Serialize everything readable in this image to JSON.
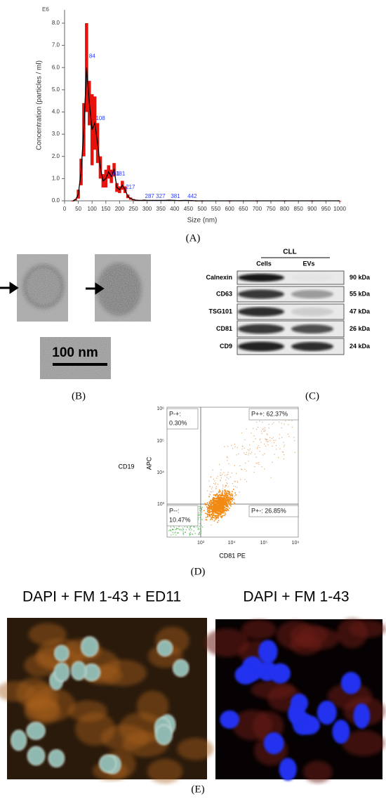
{
  "chart_data": {
    "type": "line",
    "scale_label": "E6",
    "xlabel": "Size (nm)",
    "ylabel": "Concentration (particles / ml)",
    "x": [
      30,
      40,
      50,
      60,
      70,
      80,
      90,
      100,
      110,
      120,
      130,
      140,
      150,
      160,
      170,
      180,
      190,
      200,
      210,
      220,
      230,
      240,
      250,
      260,
      270,
      280,
      290,
      300,
      320,
      340,
      360,
      380,
      400,
      420,
      440,
      460,
      480,
      500,
      600,
      700,
      800,
      900,
      1000
    ],
    "values": [
      0,
      0.05,
      0.3,
      1.3,
      3.2,
      6.0,
      4.4,
      3.2,
      3.5,
      2.6,
      1.5,
      0.9,
      1.0,
      1.3,
      1.1,
      1.4,
      0.6,
      0.5,
      0.7,
      0.5,
      0.2,
      0.1,
      0.05,
      0.03,
      0.02,
      0.02,
      0.03,
      0.02,
      0.02,
      0.02,
      0.02,
      0.03,
      0.02,
      0.01,
      0.02,
      0.01,
      0,
      0,
      0,
      0,
      0,
      0,
      0
    ],
    "error": [
      0,
      0.03,
      0.2,
      0.6,
      1.2,
      2.0,
      1.0,
      1.6,
      1.2,
      0.9,
      0.5,
      0.3,
      0.4,
      0.3,
      0.3,
      0.3,
      0.2,
      0.15,
      0.2,
      0.15,
      0.08,
      0.05,
      0.03,
      0.02,
      0.01,
      0.01,
      0.02,
      0.01,
      0.01,
      0.01,
      0.01,
      0.02,
      0.01,
      0.01,
      0.01,
      0.01,
      0,
      0,
      0,
      0,
      0,
      0,
      0
    ],
    "color": "#000000",
    "error_color": "#e8120c",
    "xlim": [
      0,
      1000
    ],
    "ylim": [
      0,
      8.6
    ],
    "xticks": [
      0,
      50,
      100,
      150,
      200,
      250,
      300,
      350,
      400,
      450,
      500,
      550,
      600,
      650,
      700,
      750,
      800,
      850,
      900,
      950,
      1000
    ],
    "yticks": [
      {
        "value": 0,
        "label": "0.0"
      },
      {
        "value": 1,
        "label": "1.0"
      },
      {
        "value": 2,
        "label": "2.0"
      },
      {
        "value": 3,
        "label": "3.0"
      },
      {
        "value": 4,
        "label": "4.0"
      },
      {
        "value": 5,
        "label": "5.0"
      },
      {
        "value": 6,
        "label": "6.0"
      },
      {
        "value": 7,
        "label": "7.0"
      },
      {
        "value": 8,
        "label": "8.0"
      }
    ],
    "annotations": [
      {
        "text": "84",
        "x": 84,
        "y": 6.5
      },
      {
        "text": "108",
        "x": 108,
        "y": 3.7
      },
      {
        "text": "161",
        "x": 161,
        "y": 1.2
      },
      {
        "text": "181",
        "x": 181,
        "y": 1.2
      },
      {
        "text": "217",
        "x": 217,
        "y": 0.6
      },
      {
        "text": "287",
        "x": 287,
        "y": 0.2
      },
      {
        "text": "327",
        "x": 327,
        "y": 0.2
      },
      {
        "text": "381",
        "x": 381,
        "y": 0.2
      },
      {
        "text": "442",
        "x": 442,
        "y": 0.2
      }
    ],
    "annotation_color": "#2b3bff",
    "panel_label": "(A)"
  },
  "panels": {
    "B": {
      "label": "(B)",
      "scale_bar": "100 nm"
    },
    "C": {
      "label": "(C)",
      "group": "CLL",
      "lanes": [
        "Cells",
        "EVs"
      ],
      "rows": [
        {
          "protein": "Calnexin",
          "size": "90 kDa"
        },
        {
          "protein": "CD63",
          "size": "55 kDa"
        },
        {
          "protein": "TSG101",
          "size": "47 kDa"
        },
        {
          "protein": "CD81",
          "size": "26 kDa"
        },
        {
          "protein": "CD9",
          "size": "24 kDa"
        }
      ]
    },
    "D": {
      "label": "(D)",
      "marker": "CD19",
      "ylabel": "APC",
      "xlabel": "CD81 PE",
      "xticks": [
        "10³",
        "10⁴",
        "10⁵",
        "10⁶"
      ],
      "yticks": [
        "10³",
        "10⁴",
        "10⁵",
        "10⁶"
      ],
      "quadrants": {
        "upper_left": [
          "P-+:",
          "0.30%"
        ],
        "upper_right": [
          "P++: 62.37%"
        ],
        "lower_left": [
          "P--:",
          "10.47%"
        ],
        "lower_right": [
          "P+-: 26.85%"
        ]
      }
    },
    "E": {
      "label": "(E)",
      "titles": [
        "DAPI + FM 1-43 + ED11",
        "DAPI + FM 1-43"
      ]
    }
  }
}
